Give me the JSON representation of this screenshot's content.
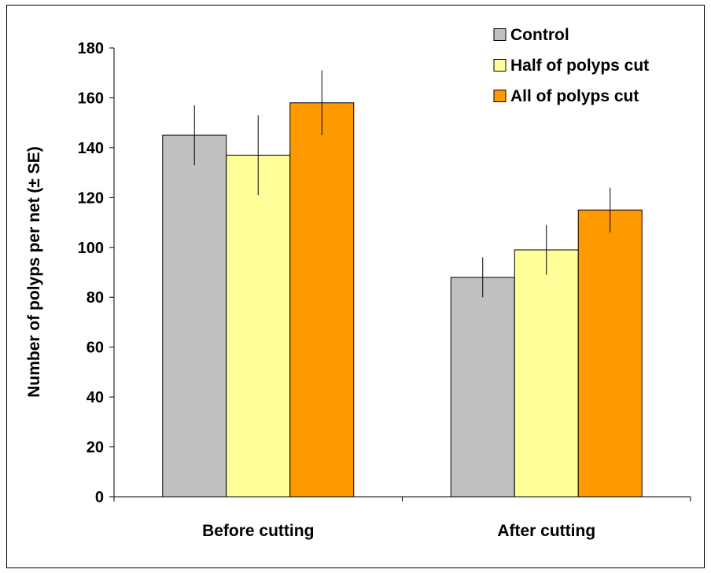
{
  "chart_data": {
    "type": "bar",
    "title": "",
    "xlabel": "",
    "ylabel": "Number of polyps per net (± SE)",
    "ylim": [
      0,
      180
    ],
    "yticks": [
      0,
      20,
      40,
      60,
      80,
      100,
      120,
      140,
      160,
      180
    ],
    "categories": [
      "Before cutting",
      "After cutting"
    ],
    "series": [
      {
        "name": "Control",
        "color": "#c0c0c0",
        "values": [
          145,
          88
        ],
        "errors": [
          12,
          8
        ]
      },
      {
        "name": "Half of polyps cut",
        "color": "#ffff99",
        "values": [
          137,
          99
        ],
        "errors": [
          16,
          10
        ]
      },
      {
        "name": "All of polyps cut",
        "color": "#ff9900",
        "values": [
          158,
          115
        ],
        "errors": [
          13,
          9
        ]
      }
    ],
    "legend": "top-right",
    "grid": false
  }
}
